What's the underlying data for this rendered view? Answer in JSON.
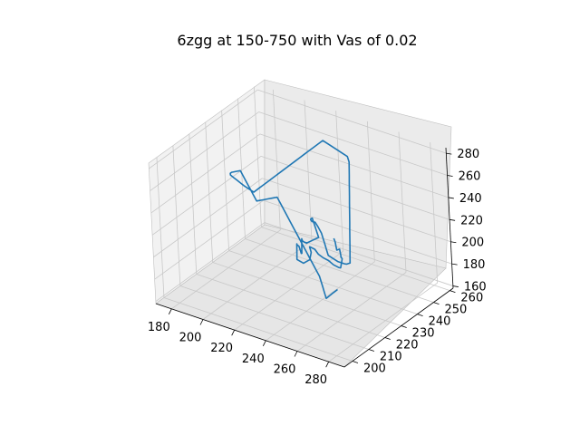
{
  "chart_data": {
    "type": "line",
    "projection": "3d",
    "title": "6zgg at 150-750 with Vas of 0.02",
    "xlabel": "",
    "ylabel": "",
    "zlabel": "",
    "xlim": [
      170,
      290
    ],
    "ylim": [
      195,
      262
    ],
    "zlim": [
      158,
      285
    ],
    "x_ticks": [
      "180",
      "200",
      "220",
      "240",
      "260",
      "280"
    ],
    "y_ticks": [
      "200",
      "210",
      "220",
      "230",
      "240",
      "250",
      "260"
    ],
    "z_ticks": [
      "160",
      "180",
      "200",
      "220",
      "240",
      "260",
      "280"
    ],
    "grid": true,
    "series": [
      {
        "color": "#1f77b4",
        "points": [
          [
            222,
            255,
            178
          ],
          [
            226,
            252,
            180
          ],
          [
            229,
            250,
            176
          ],
          [
            233,
            248,
            181
          ],
          [
            236,
            246,
            177
          ],
          [
            239,
            243,
            182
          ],
          [
            242,
            241,
            184
          ],
          [
            244,
            238,
            180
          ],
          [
            246,
            236,
            183
          ],
          [
            247,
            234,
            186
          ],
          [
            246,
            232,
            190
          ],
          [
            244,
            231,
            194
          ],
          [
            243,
            229,
            198
          ],
          [
            242,
            227,
            203
          ],
          [
            241,
            226,
            208
          ],
          [
            240,
            224,
            212
          ],
          [
            242,
            222,
            215
          ],
          [
            244,
            221,
            212
          ],
          [
            245,
            219,
            208
          ],
          [
            243,
            217,
            206
          ],
          [
            240,
            216,
            209
          ],
          [
            238,
            218,
            213
          ],
          [
            236,
            220,
            217
          ],
          [
            234,
            222,
            213
          ],
          [
            233,
            224,
            209
          ],
          [
            231,
            226,
            205
          ],
          [
            229,
            228,
            201
          ],
          [
            227,
            230,
            197
          ],
          [
            225,
            232,
            193
          ],
          [
            223,
            234,
            189
          ],
          [
            221,
            236,
            185
          ],
          [
            219,
            238,
            181
          ],
          [
            217,
            240,
            178
          ],
          [
            215,
            242,
            175
          ],
          [
            213,
            244,
            178
          ],
          [
            211,
            246,
            182
          ],
          [
            209,
            248,
            178
          ],
          [
            207,
            250,
            174
          ],
          [
            206,
            252,
            170
          ],
          [
            205,
            254,
            167
          ],
          [
            204,
            255,
            165
          ],
          [
            207,
            256,
            168
          ],
          [
            210,
            257,
            171
          ],
          [
            212,
            255,
            175
          ],
          [
            214,
            253,
            179
          ],
          [
            216,
            251,
            183
          ],
          [
            218,
            249,
            187
          ],
          [
            220,
            247,
            191
          ],
          [
            222,
            245,
            195
          ],
          [
            224,
            243,
            199
          ],
          [
            226,
            241,
            203
          ],
          [
            228,
            239,
            207
          ],
          [
            230,
            237,
            211
          ],
          [
            232,
            235,
            215
          ],
          [
            234,
            233,
            219
          ],
          [
            236,
            231,
            223
          ],
          [
            238,
            229,
            227
          ],
          [
            240,
            227,
            231
          ],
          [
            242,
            225,
            235
          ],
          [
            244,
            223,
            239
          ],
          [
            246,
            221,
            243
          ],
          [
            248,
            219,
            247
          ],
          [
            250,
            217,
            250
          ],
          [
            252,
            215,
            253
          ],
          [
            254,
            213,
            256
          ],
          [
            256,
            211,
            259
          ],
          [
            258,
            209,
            262
          ],
          [
            260,
            207,
            264
          ],
          [
            263,
            205,
            266
          ],
          [
            266,
            204,
            268
          ],
          [
            269,
            203,
            266
          ],
          [
            272,
            202,
            263
          ],
          [
            274,
            201,
            260
          ],
          [
            276,
            200,
            257
          ],
          [
            278,
            199,
            254
          ],
          [
            280,
            198,
            251
          ],
          [
            282,
            199,
            248
          ],
          [
            284,
            200,
            245
          ],
          [
            286,
            202,
            242
          ],
          [
            285,
            204,
            239
          ],
          [
            283,
            206,
            236
          ],
          [
            281,
            208,
            233
          ],
          [
            279,
            210,
            230
          ],
          [
            277,
            212,
            227
          ],
          [
            275,
            214,
            224
          ],
          [
            273,
            216,
            221
          ],
          [
            271,
            218,
            218
          ],
          [
            269,
            220,
            215
          ],
          [
            267,
            222,
            212
          ],
          [
            265,
            224,
            209
          ],
          [
            263,
            226,
            206
          ],
          [
            261,
            228,
            203
          ],
          [
            259,
            230,
            200
          ],
          [
            257,
            232,
            203
          ],
          [
            255,
            234,
            206
          ],
          [
            253,
            236,
            209
          ],
          [
            251,
            238,
            212
          ],
          [
            249,
            240,
            215
          ],
          [
            247,
            242,
            218
          ],
          [
            245,
            244,
            221
          ],
          [
            243,
            246,
            224
          ],
          [
            241,
            248,
            227
          ],
          [
            239,
            250,
            230
          ],
          [
            237,
            252,
            233
          ],
          [
            235,
            254,
            236
          ],
          [
            233,
            256,
            239
          ],
          [
            231,
            258,
            242
          ],
          [
            229,
            260,
            245
          ],
          [
            227,
            261,
            248
          ],
          [
            225,
            260,
            251
          ],
          [
            223,
            259,
            254
          ],
          [
            221,
            258,
            257
          ],
          [
            219,
            257,
            260
          ],
          [
            217,
            256,
            263
          ],
          [
            215,
            255,
            260
          ],
          [
            213,
            254,
            257
          ],
          [
            211,
            253,
            254
          ],
          [
            209,
            252,
            251
          ],
          [
            207,
            251,
            248
          ],
          [
            205,
            250,
            245
          ],
          [
            203,
            249,
            242
          ],
          [
            201,
            248,
            239
          ],
          [
            199,
            247,
            236
          ],
          [
            197,
            246,
            233
          ],
          [
            195,
            245,
            230
          ],
          [
            193,
            244,
            227
          ],
          [
            191,
            243,
            224
          ],
          [
            189,
            242,
            221
          ],
          [
            187,
            241,
            218
          ],
          [
            185,
            240,
            221
          ],
          [
            183,
            239,
            224
          ],
          [
            182,
            238,
            227
          ],
          [
            181,
            237,
            230
          ],
          [
            180,
            236,
            233
          ],
          [
            179,
            235,
            236
          ],
          [
            180,
            234,
            239
          ],
          [
            182,
            233,
            242
          ],
          [
            185,
            232,
            245
          ],
          [
            188,
            231,
            248
          ],
          [
            191,
            230,
            251
          ],
          [
            194,
            229,
            248
          ],
          [
            197,
            228,
            245
          ],
          [
            200,
            227,
            242
          ],
          [
            203,
            226,
            239
          ],
          [
            206,
            225,
            236
          ],
          [
            209,
            224,
            239
          ],
          [
            212,
            223,
            242
          ],
          [
            215,
            222,
            245
          ],
          [
            218,
            221,
            248
          ],
          [
            221,
            220,
            251
          ],
          [
            224,
            219,
            254
          ],
          [
            227,
            218,
            257
          ],
          [
            230,
            217,
            254
          ],
          [
            233,
            216,
            251
          ],
          [
            236,
            215,
            248
          ],
          [
            239,
            214,
            245
          ],
          [
            242,
            213,
            242
          ],
          [
            245,
            212,
            239
          ],
          [
            248,
            211,
            236
          ],
          [
            251,
            210,
            233
          ],
          [
            254,
            209,
            230
          ],
          [
            257,
            208,
            227
          ],
          [
            260,
            207,
            224
          ],
          [
            263,
            206,
            221
          ],
          [
            266,
            205,
            218
          ],
          [
            268,
            204,
            215
          ],
          [
            270,
            203,
            212
          ],
          [
            272,
            202,
            209
          ],
          [
            274,
            201,
            206
          ],
          [
            276,
            200,
            209
          ],
          [
            278,
            199,
            212
          ],
          [
            280,
            198,
            215
          ],
          [
            282,
            197,
            218
          ],
          [
            284,
            196,
            221
          ],
          [
            286,
            197,
            224
          ]
        ]
      }
    ]
  }
}
